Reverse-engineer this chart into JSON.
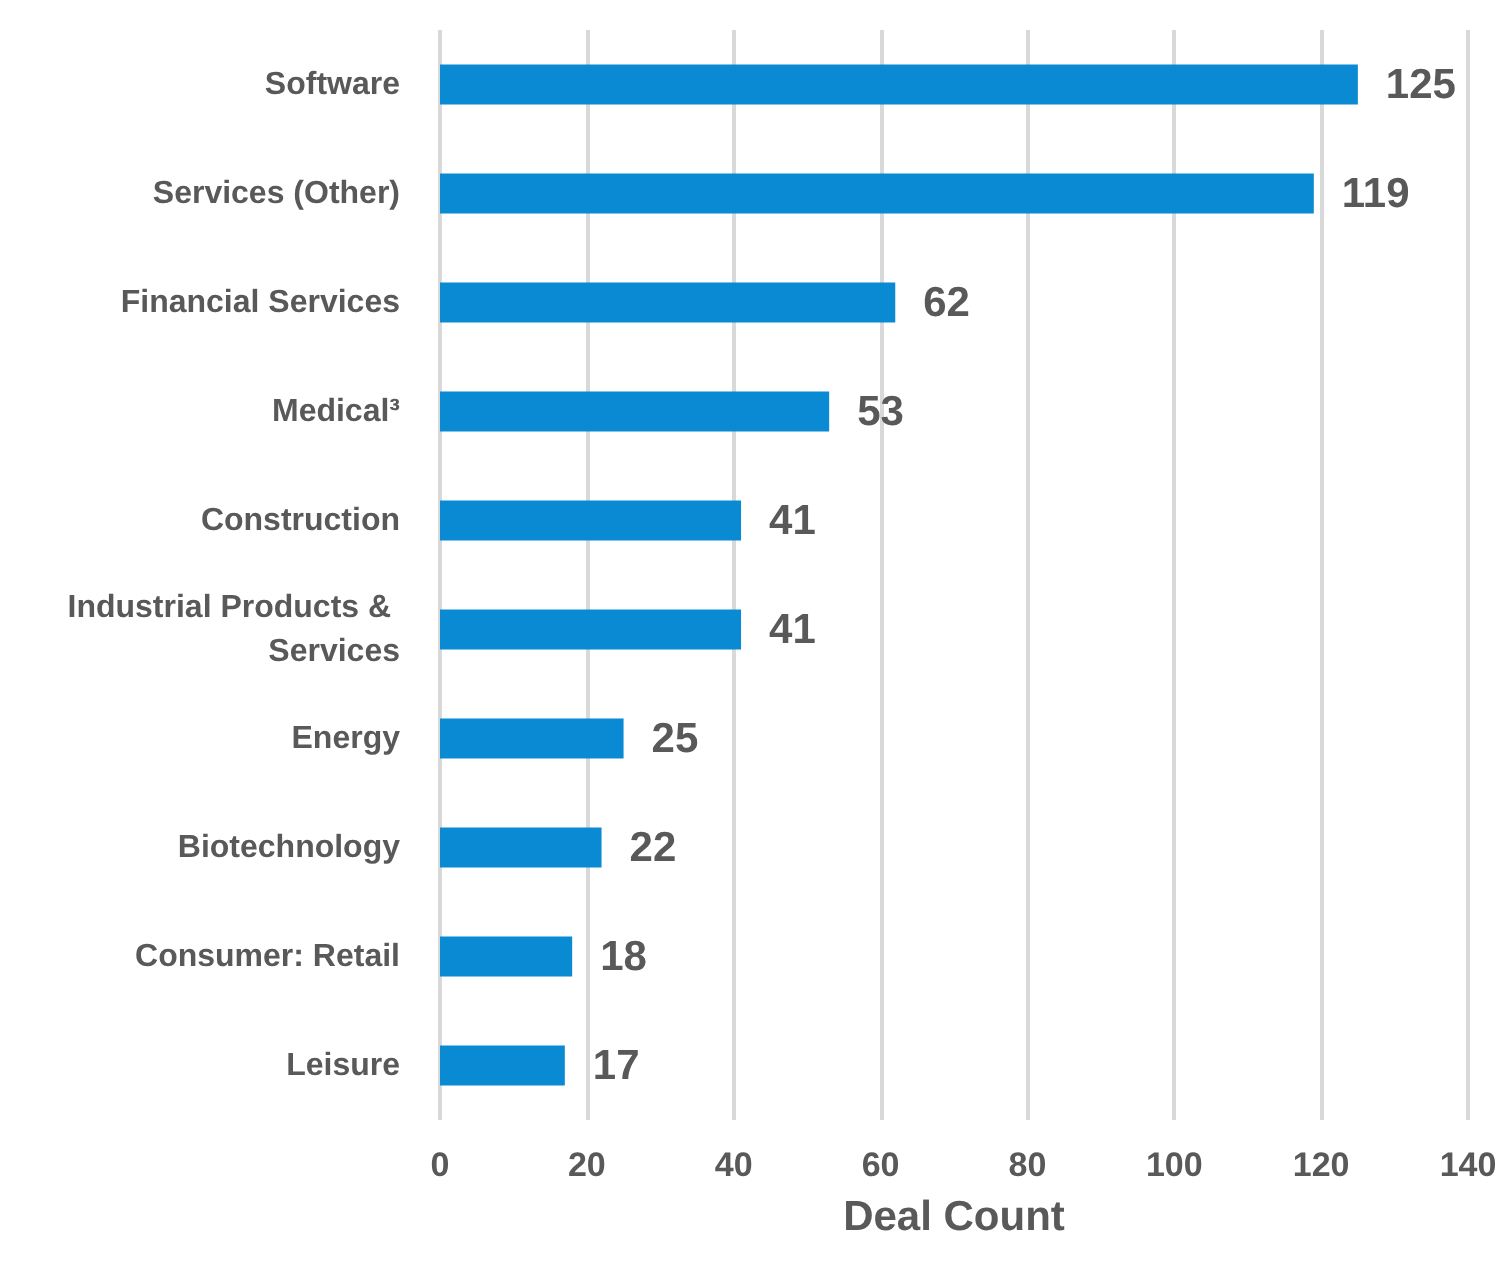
{
  "chart_data": {
    "type": "bar",
    "orientation": "horizontal",
    "xlabel": "Deal Count",
    "categories": [
      "Software",
      "Services (Other)",
      "Financial Services",
      "Medical³",
      "Construction",
      "Industrial Products & Services",
      "Energy",
      "Biotechnology",
      "Consumer: Retail",
      "Leisure"
    ],
    "values": [
      125,
      119,
      62,
      53,
      41,
      41,
      25,
      22,
      18,
      17
    ],
    "color": "#0a8ad2",
    "data_labels": true,
    "grid": "x",
    "xlim": [
      0,
      140
    ],
    "xticks": [
      0,
      20,
      40,
      60,
      80,
      100,
      120,
      140
    ]
  }
}
